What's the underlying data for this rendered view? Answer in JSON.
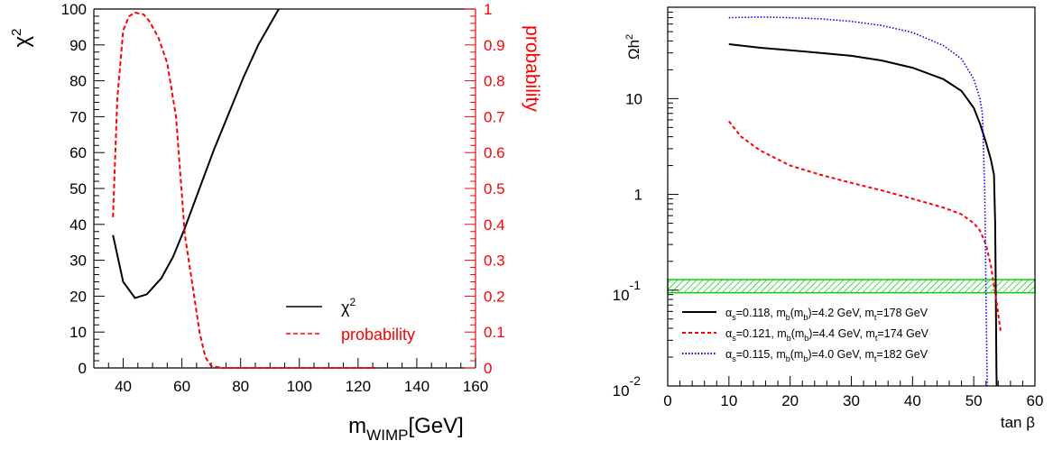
{
  "colors": {
    "black": "#000000",
    "red": "#ff0000",
    "blue": "#0000ff",
    "green": "#00cc00"
  },
  "chart_data": [
    {
      "type": "line",
      "id": "left",
      "xlabel": "m",
      "xlabel_sub": "WIMP",
      "xlabel_unit": "[GeV]",
      "ylabel": "χ",
      "ylabel_sup": "2",
      "y2label": "probability",
      "xlim": [
        30,
        160
      ],
      "ylim": [
        0,
        100
      ],
      "y2lim": [
        0,
        1
      ],
      "x_ticks": [
        "40",
        "60",
        "80",
        "100",
        "120",
        "140",
        "160"
      ],
      "y_ticks": [
        "0",
        "10",
        "20",
        "30",
        "40",
        "50",
        "60",
        "70",
        "80",
        "90",
        "100"
      ],
      "y2_ticks": [
        "0",
        "0.1",
        "0.2",
        "0.3",
        "0.4",
        "0.5",
        "0.6",
        "0.7",
        "0.8",
        "0.9",
        "1"
      ],
      "legend": [
        {
          "label": "χ",
          "sup": "2",
          "color": "#000000",
          "dash": ""
        },
        {
          "label": "probability",
          "sup": "",
          "color": "#ff0000",
          "dash": "5,3"
        }
      ],
      "series": [
        {
          "name": "χ2",
          "color": "#000000",
          "dash": "",
          "axis": "left",
          "points": [
            [
              36.5,
              37
            ],
            [
              40,
              24
            ],
            [
              44,
              19.5
            ],
            [
              48,
              20.5
            ],
            [
              53,
              25
            ],
            [
              57,
              31
            ],
            [
              61,
              39
            ],
            [
              66,
              50
            ],
            [
              71,
              61
            ],
            [
              76,
              71
            ],
            [
              81,
              81
            ],
            [
              86,
              90
            ],
            [
              93,
              100
            ]
          ]
        },
        {
          "name": "probability",
          "color": "#ff0000",
          "dash": "5,3",
          "axis": "right",
          "points": [
            [
              36.5,
              0.42
            ],
            [
              38,
              0.75
            ],
            [
              40,
              0.94
            ],
            [
              42,
              0.98
            ],
            [
              44,
              0.99
            ],
            [
              47,
              0.985
            ],
            [
              49,
              0.965
            ],
            [
              52,
              0.92
            ],
            [
              55,
              0.85
            ],
            [
              58,
              0.7
            ],
            [
              61,
              0.37
            ],
            [
              64,
              0.21
            ],
            [
              66,
              0.1
            ],
            [
              68,
              0.03
            ],
            [
              70,
              0.005
            ],
            [
              74,
              0
            ],
            [
              126,
              0
            ]
          ]
        }
      ]
    },
    {
      "type": "line",
      "id": "right",
      "xlabel": "tan β",
      "ylabel": "Ωh",
      "ylabel_sup": "2",
      "xlim": [
        0,
        60
      ],
      "ylog": true,
      "ylim": [
        0.01,
        90
      ],
      "x_ticks": [
        "0",
        "10",
        "20",
        "30",
        "40",
        "50",
        "60"
      ],
      "y_ticks": [
        {
          "value": 10,
          "main": "10",
          "sup": ""
        },
        {
          "value": 1,
          "main": "1",
          "sup": ""
        },
        {
          "value": 0.1,
          "main": "10",
          "sup": "-1"
        },
        {
          "value": 0.01,
          "main": "10",
          "sup": "-2"
        }
      ],
      "band": [
        0.094,
        0.129
      ],
      "legend": [
        {
          "color": "#000000",
          "dash": "",
          "parts": [
            "α",
            "s",
            "=0.118, m",
            "b",
            "(m",
            "b",
            ")=4.2 GeV, m",
            "t",
            "=178 GeV"
          ]
        },
        {
          "color": "#ff0000",
          "dash": "4,3",
          "parts": [
            "α",
            "s",
            "=0.121, m",
            "b",
            "(m",
            "b",
            ")=4.4 GeV, m",
            "t",
            "=174 GeV"
          ]
        },
        {
          "color": "#0000ff",
          "dash": "1.5,2",
          "parts": [
            "α",
            "s",
            "=0.115, m",
            "b",
            "(m",
            "b",
            ")=4.0 GeV, m",
            "t",
            "=182 GeV"
          ]
        }
      ],
      "series": [
        {
          "name": "αs=0.118, mb(mb)=4.2 GeV, mt=178 GeV",
          "color": "#000000",
          "dash": "",
          "points": [
            [
              10,
              37
            ],
            [
              15,
              34
            ],
            [
              20,
              32
            ],
            [
              25,
              30
            ],
            [
              30,
              28
            ],
            [
              35,
              25
            ],
            [
              40,
              21
            ],
            [
              45,
              16
            ],
            [
              48,
              12
            ],
            [
              50,
              8
            ],
            [
              51,
              5.5
            ],
            [
              52,
              3.5
            ],
            [
              52.8,
              2.3
            ],
            [
              53.3,
              1.6
            ],
            [
              53.5,
              0.5
            ],
            [
              53.6,
              0.1
            ],
            [
              53.7,
              0.015
            ],
            [
              53.75,
              0.01
            ]
          ]
        },
        {
          "name": "αs=0.121, mb(mb)=4.4 GeV, mt=174 GeV",
          "color": "#ff0000",
          "dash": "4,3",
          "points": [
            [
              10,
              5.8
            ],
            [
              12,
              4.0
            ],
            [
              15,
              2.9
            ],
            [
              20,
              2.0
            ],
            [
              25,
              1.6
            ],
            [
              30,
              1.32
            ],
            [
              35,
              1.1
            ],
            [
              40,
              0.9
            ],
            [
              45,
              0.73
            ],
            [
              48,
              0.62
            ],
            [
              50,
              0.5
            ],
            [
              51,
              0.42
            ],
            [
              52,
              0.3
            ],
            [
              52.8,
              0.18
            ],
            [
              53.3,
              0.11
            ],
            [
              53.8,
              0.07
            ],
            [
              54.2,
              0.045
            ],
            [
              54.4,
              0.037
            ]
          ]
        },
        {
          "name": "αs=0.115, mb(mb)=4.0 GeV, mt=182 GeV",
          "color": "#0000ff",
          "dash": "1.5,2",
          "points": [
            [
              10,
              70
            ],
            [
              15,
              71
            ],
            [
              20,
              70
            ],
            [
              25,
              68
            ],
            [
              30,
              64
            ],
            [
              35,
              58
            ],
            [
              40,
              49
            ],
            [
              45,
              36
            ],
            [
              48,
              26
            ],
            [
              50,
              16
            ],
            [
              51,
              10
            ],
            [
              51.4,
              7
            ],
            [
              51.6,
              3
            ],
            [
              51.8,
              1
            ],
            [
              51.9,
              0.3
            ],
            [
              52,
              0.1
            ],
            [
              52.1,
              0.03
            ],
            [
              52.2,
              0.01
            ]
          ]
        }
      ]
    }
  ]
}
